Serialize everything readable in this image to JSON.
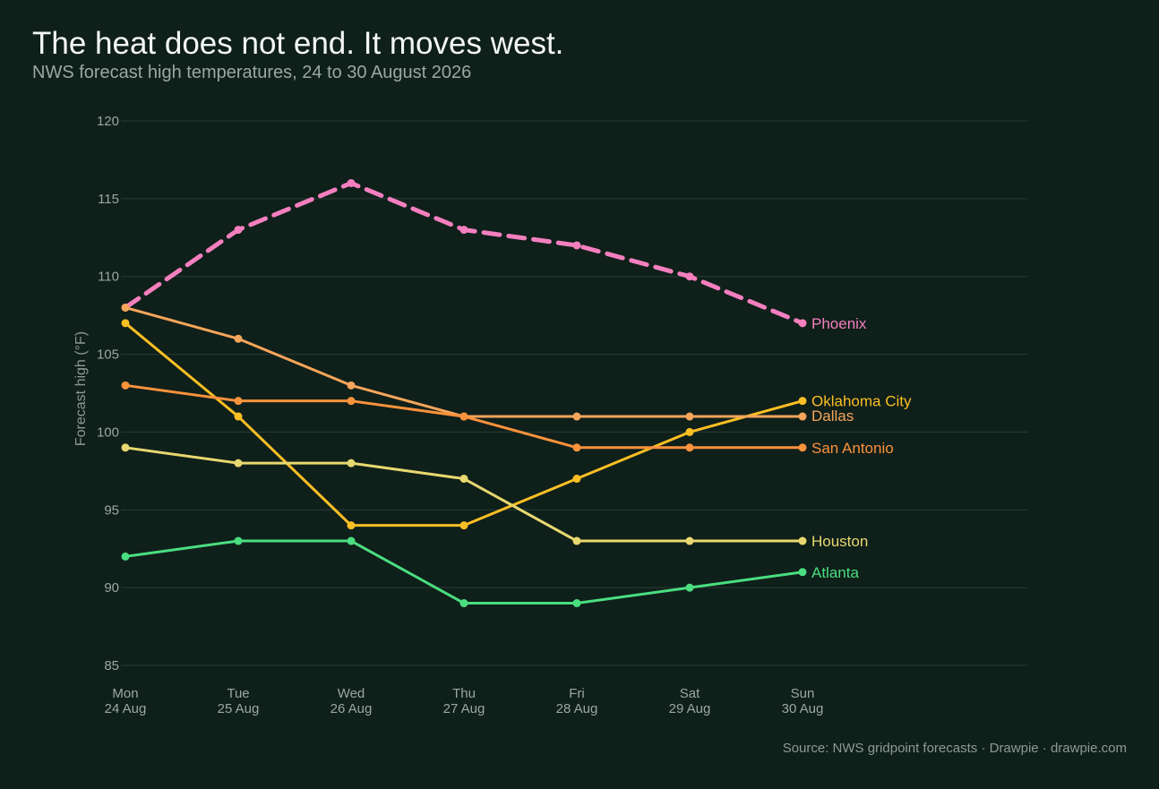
{
  "header": {
    "title": "The heat does not end. It moves west.",
    "subtitle": "NWS forecast high temperatures, 24 to 30 August 2026"
  },
  "footer": {
    "source": "Source: NWS gridpoint forecasts  ·  Drawpie · drawpie.com"
  },
  "chart_data": {
    "type": "line",
    "title": "The heat does not end. It moves west.",
    "subtitle": "NWS forecast high temperatures, 24 to 30 August 2026",
    "xlabel": "",
    "ylabel": "Forecast high (°F)",
    "ylim": [
      85,
      120
    ],
    "yticks": [
      85,
      90,
      95,
      100,
      105,
      110,
      115,
      120
    ],
    "grid": true,
    "legend": "direct labels at line ends",
    "categories": [
      {
        "day": "Mon",
        "date": "24 Aug"
      },
      {
        "day": "Tue",
        "date": "25 Aug"
      },
      {
        "day": "Wed",
        "date": "26 Aug"
      },
      {
        "day": "Thu",
        "date": "27 Aug"
      },
      {
        "day": "Fri",
        "date": "28 Aug"
      },
      {
        "day": "Sat",
        "date": "29 Aug"
      },
      {
        "day": "Sun",
        "date": "30 Aug"
      }
    ],
    "series": [
      {
        "name": "Phoenix",
        "color": "#f47fbf",
        "dashed": true,
        "values": [
          108,
          113,
          116,
          113,
          112,
          110,
          107
        ]
      },
      {
        "name": "Oklahoma City",
        "color": "#fbbf24",
        "dashed": false,
        "values": [
          107,
          101,
          94,
          94,
          97,
          100,
          102
        ]
      },
      {
        "name": "Dallas",
        "color": "#f6a55a",
        "dashed": false,
        "values": [
          108,
          106,
          103,
          101,
          101,
          101,
          101
        ]
      },
      {
        "name": "San Antonio",
        "color": "#fb923c",
        "dashed": false,
        "values": [
          103,
          102,
          102,
          101,
          99,
          99,
          99
        ]
      },
      {
        "name": "Houston",
        "color": "#e8d870",
        "dashed": false,
        "values": [
          99,
          98,
          98,
          97,
          93,
          93,
          93
        ]
      },
      {
        "name": "Atlanta",
        "color": "#4ade80",
        "dashed": false,
        "values": [
          92,
          93,
          93,
          89,
          89,
          90,
          91
        ]
      }
    ]
  }
}
